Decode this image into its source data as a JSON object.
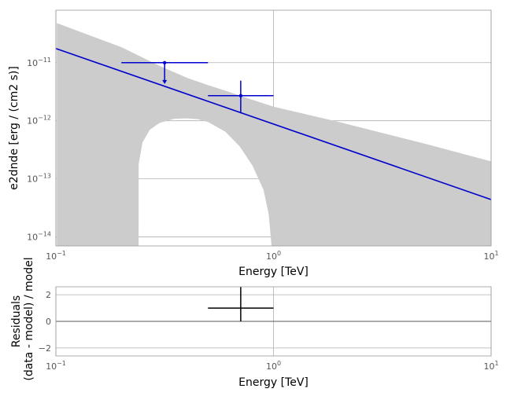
{
  "chart_data": [
    {
      "type": "line",
      "xlabel": "Energy [TeV]",
      "ylabel": "e2dnde [erg / (cm2 s)]",
      "xscale": "log",
      "yscale": "log",
      "xlim": [
        0.1,
        10
      ],
      "ylim": [
        7e-15,
        8e-11
      ],
      "grid": true,
      "x_ticks": [
        {
          "base": "10",
          "exp": "−1"
        },
        {
          "base": "10",
          "exp": "0"
        },
        {
          "base": "10",
          "exp": "1"
        }
      ],
      "y_ticks": [
        {
          "value": 1e-14,
          "base": "10",
          "exp": "−14"
        },
        {
          "value": 1e-13,
          "base": "10",
          "exp": "−13"
        },
        {
          "value": 1e-12,
          "base": "10",
          "exp": "−12"
        },
        {
          "value": 1e-11,
          "base": "10",
          "exp": "−11"
        }
      ],
      "model_line": {
        "color": "#0000cc",
        "x": [
          0.1,
          10
        ],
        "y": [
          1.75e-11,
          4.4e-14
        ]
      },
      "uncertainty_band": {
        "color": "#cccccc",
        "upper": {
          "x": [
            0.101,
            0.2,
            0.3,
            0.4,
            0.5,
            0.6,
            0.8,
            1.0,
            2.0,
            5.0,
            10.0
          ],
          "y": [
            4.8e-11,
            1.85e-11,
            8.8e-12,
            5.5e-12,
            4.1e-12,
            3.3e-12,
            2.3e-12,
            1.75e-12,
            9.5e-13,
            4e-13,
            2e-13
          ]
        },
        "lower": {
          "x": [
            0.101,
            0.24,
            0.2401,
            0.25,
            0.27,
            0.3,
            0.35,
            0.4,
            0.45,
            0.5,
            0.6,
            0.7,
            0.8,
            0.9,
            0.95,
            0.98,
            10.0
          ],
          "y": [
            7e-15,
            7e-15,
            1.8e-13,
            4.2e-13,
            7e-13,
            9.2e-13,
            1.08e-12,
            1.1e-12,
            1.06e-12,
            9.5e-13,
            6.5e-13,
            3.6e-13,
            1.7e-13,
            6.5e-14,
            2.5e-14,
            7e-15,
            7e-15
          ]
        }
      },
      "flux_points": [
        {
          "x": 0.316,
          "y": 1e-11,
          "x_low": 0.2,
          "x_high": 0.5,
          "upper_limit": true,
          "arrow_to": 4.3e-12
        },
        {
          "x": 0.707,
          "y": 2.7e-12,
          "x_low": 0.5,
          "x_high": 1.0,
          "y_low": 1.35e-12,
          "y_high": 4.9e-12,
          "upper_limit": false
        }
      ]
    },
    {
      "type": "scatter",
      "xlabel": "Energy [TeV]",
      "ylabel_line1": "Residuals",
      "ylabel_line2": "(data - model) / model",
      "xscale": "log",
      "xlim": [
        0.1,
        10
      ],
      "ylim": [
        -2.6,
        2.6
      ],
      "grid": true,
      "x_ticks": [
        {
          "base": "10",
          "exp": "−1"
        },
        {
          "base": "10",
          "exp": "0"
        },
        {
          "base": "10",
          "exp": "1"
        }
      ],
      "y_ticks": [
        {
          "value": -2,
          "label": "−2"
        },
        {
          "value": 0,
          "label": "0"
        },
        {
          "value": 2,
          "label": "2"
        }
      ],
      "zero_line": 0,
      "points": [
        {
          "x": 0.707,
          "y": 1.0,
          "x_low": 0.5,
          "x_high": 1.0,
          "y_low": 0.0,
          "y_high": 2.6
        }
      ]
    }
  ]
}
